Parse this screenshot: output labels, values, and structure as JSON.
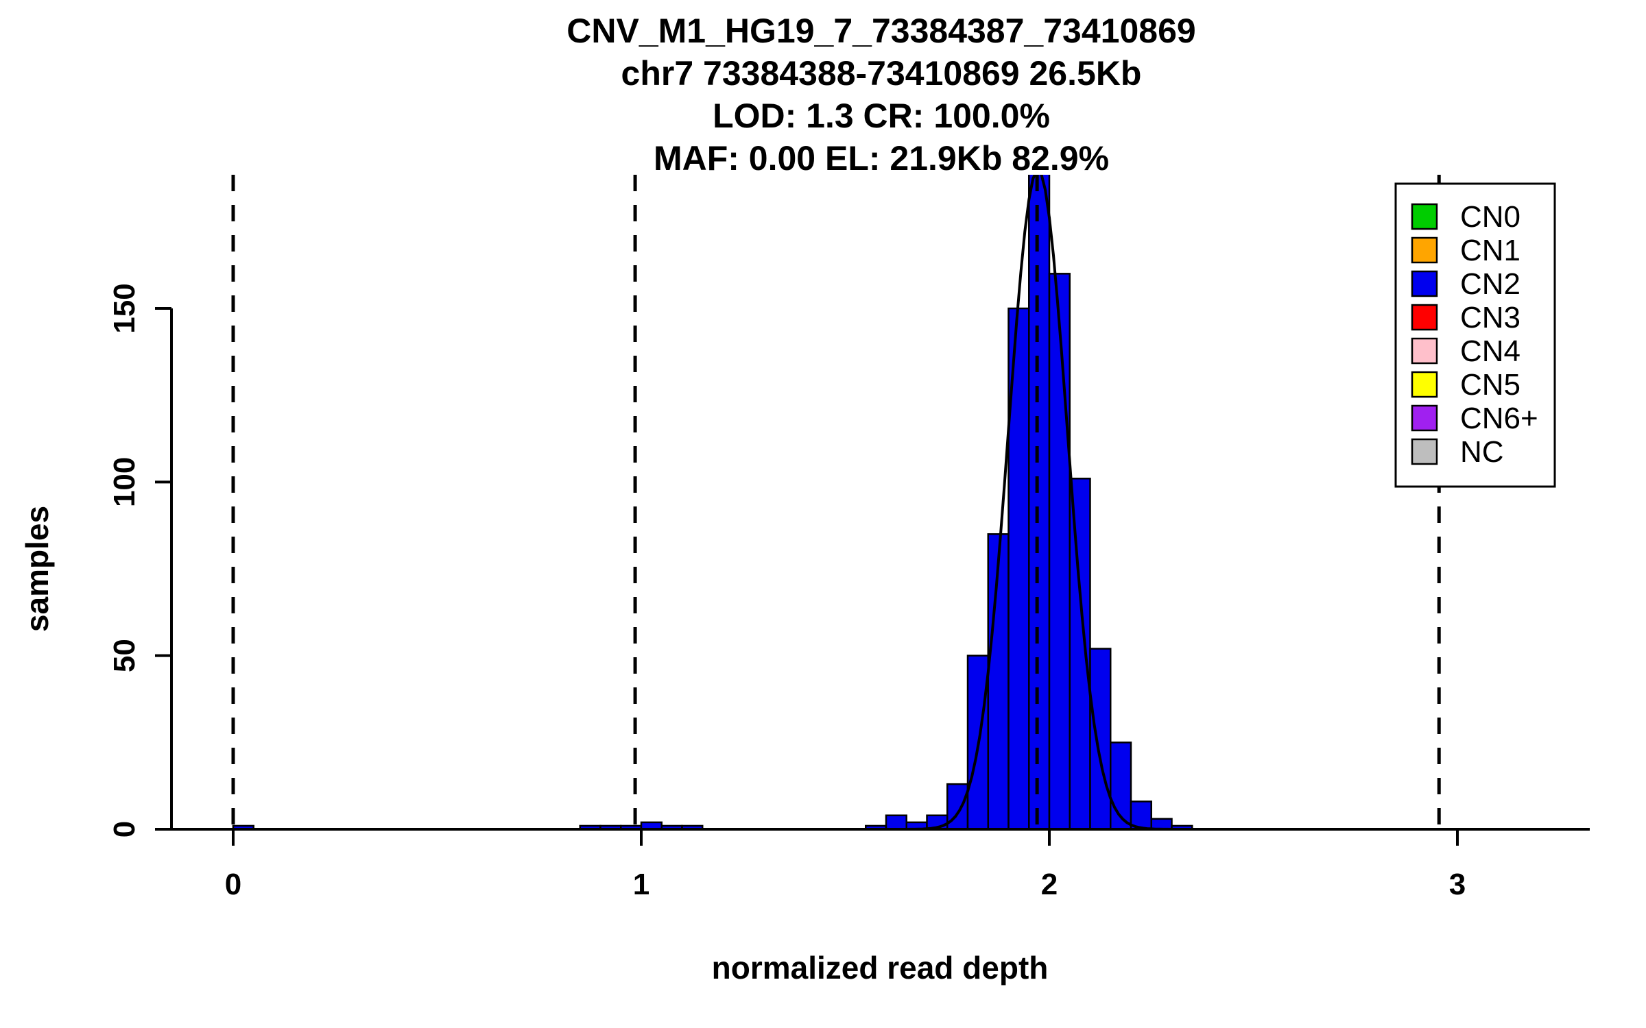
{
  "chart_data": {
    "type": "bar",
    "title_lines": [
      "CNV_M1_HG19_7_73384387_73410869",
      "chr7 73384388-73410869 26.5Kb",
      "LOD: 1.3 CR: 100.0%",
      "MAF: 0.00 EL: 21.9Kb 82.9%"
    ],
    "xlabel": "normalized read depth",
    "ylabel": "samples",
    "x_ticks": [
      0,
      1,
      2,
      3
    ],
    "y_ticks": [
      0,
      50,
      100,
      150
    ],
    "xlim": [
      -0.12,
      3.3
    ],
    "ylim": [
      0,
      188
    ],
    "grid": false,
    "legend_position": "top-right",
    "bin_width": 0.05,
    "bar_color": "#0000EE",
    "bar_border_color": "#000000",
    "bars": [
      {
        "x": 0.0,
        "count": 1
      },
      {
        "x": 0.85,
        "count": 1
      },
      {
        "x": 0.9,
        "count": 1
      },
      {
        "x": 0.95,
        "count": 1
      },
      {
        "x": 1.0,
        "count": 2
      },
      {
        "x": 1.05,
        "count": 1
      },
      {
        "x": 1.1,
        "count": 1
      },
      {
        "x": 1.55,
        "count": 1
      },
      {
        "x": 1.6,
        "count": 4
      },
      {
        "x": 1.65,
        "count": 2
      },
      {
        "x": 1.7,
        "count": 4
      },
      {
        "x": 1.75,
        "count": 13
      },
      {
        "x": 1.8,
        "count": 50
      },
      {
        "x": 1.85,
        "count": 85
      },
      {
        "x": 1.9,
        "count": 150
      },
      {
        "x": 1.95,
        "count": 195
      },
      {
        "x": 2.0,
        "count": 160
      },
      {
        "x": 2.05,
        "count": 101
      },
      {
        "x": 2.1,
        "count": 52
      },
      {
        "x": 2.15,
        "count": 25
      },
      {
        "x": 2.2,
        "count": 8
      },
      {
        "x": 2.25,
        "count": 3
      },
      {
        "x": 2.3,
        "count": 1
      }
    ],
    "curve": {
      "type": "gaussian",
      "mean": 1.972,
      "sd": 0.072,
      "amplitude": 190,
      "color": "#000000"
    },
    "dashed_lines": [
      0,
      0.985,
      1.97,
      2.955
    ],
    "legend": [
      {
        "label": "CN0",
        "color": "#00CD00"
      },
      {
        "label": "CN1",
        "color": "#FFA500"
      },
      {
        "label": "CN2",
        "color": "#0000EE"
      },
      {
        "label": "CN3",
        "color": "#FF0000"
      },
      {
        "label": "CN4",
        "color": "#FFC0CB"
      },
      {
        "label": "CN5",
        "color": "#FFFF00"
      },
      {
        "label": "CN6+",
        "color": "#A020F0"
      },
      {
        "label": "NC",
        "color": "#BEBEBE"
      }
    ]
  }
}
